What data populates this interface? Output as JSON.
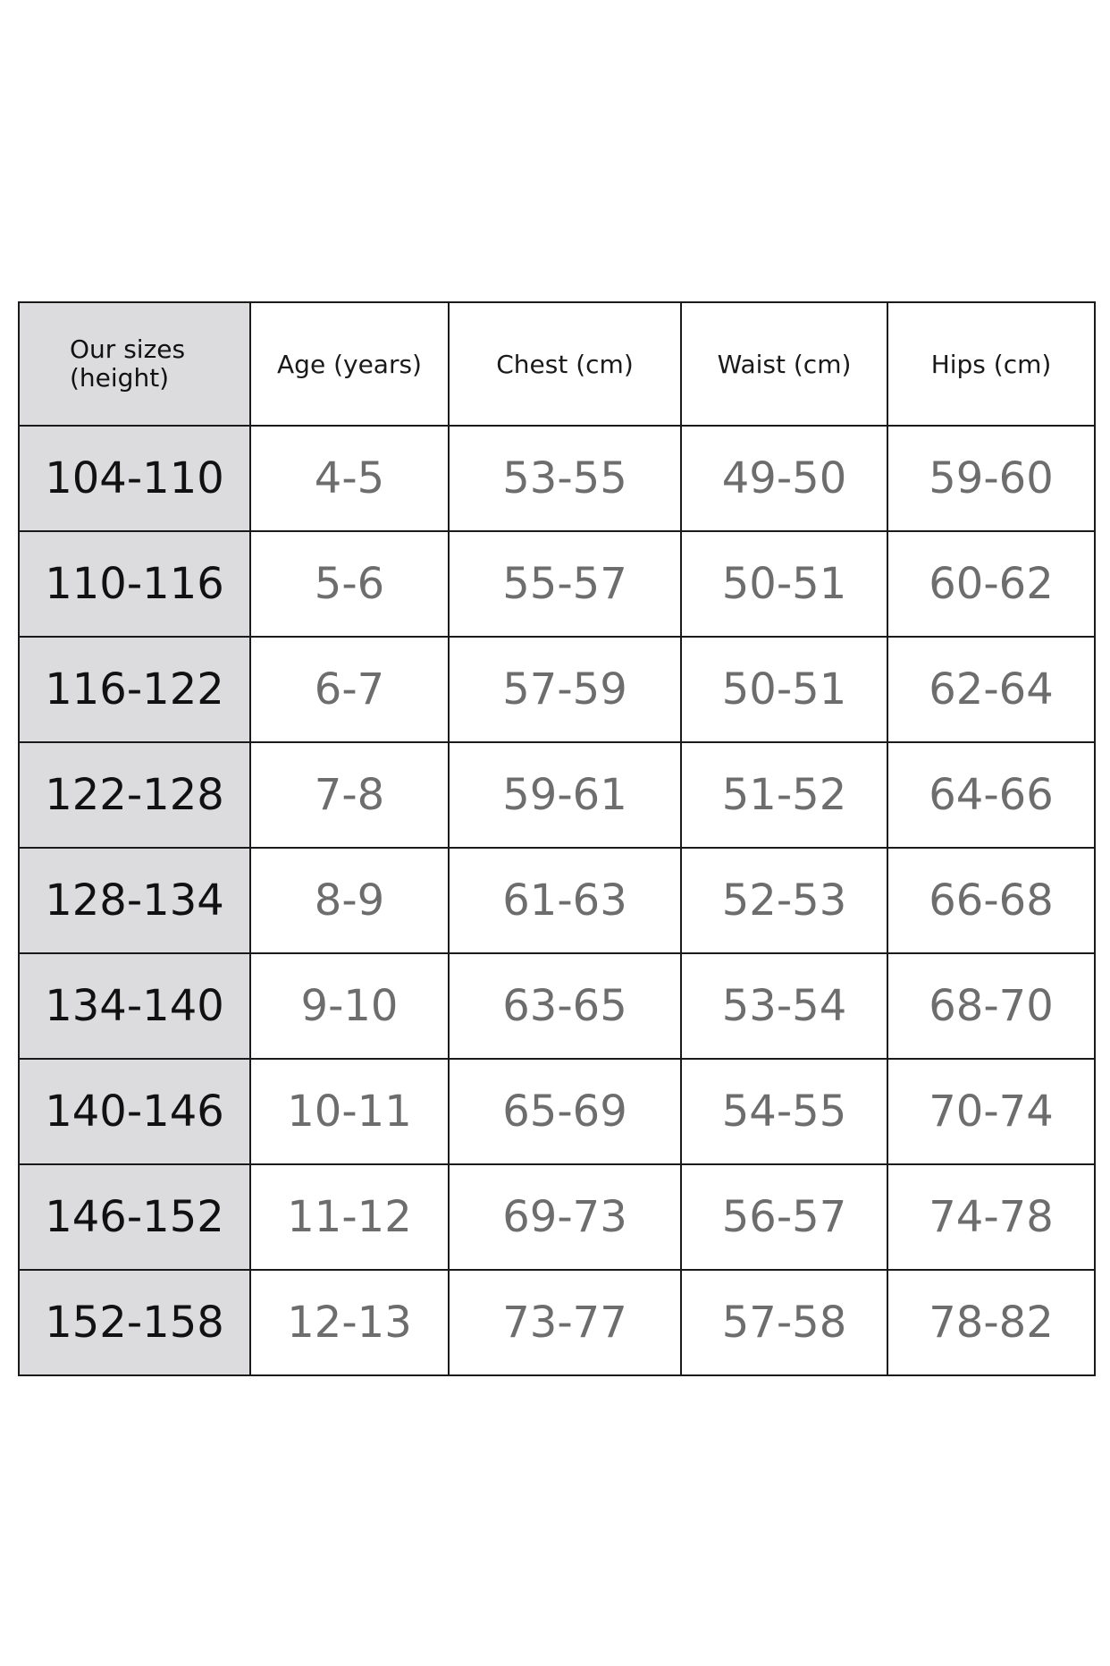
{
  "table": {
    "headers": {
      "size_line1": "Our sizes",
      "size_line2": "(height)",
      "age": "Age (years)",
      "chest": "Chest (cm)",
      "waist": "Waist (cm)",
      "hips": "Hips (cm)"
    },
    "rows": [
      {
        "size": "104-110",
        "age": "4-5",
        "chest": "53-55",
        "waist": "49-50",
        "hips": "59-60"
      },
      {
        "size": "110-116",
        "age": "5-6",
        "chest": "55-57",
        "waist": "50-51",
        "hips": "60-62"
      },
      {
        "size": "116-122",
        "age": "6-7",
        "chest": "57-59",
        "waist": "50-51",
        "hips": "62-64"
      },
      {
        "size": "122-128",
        "age": "7-8",
        "chest": "59-61",
        "waist": "51-52",
        "hips": "64-66"
      },
      {
        "size": "128-134",
        "age": "8-9",
        "chest": "61-63",
        "waist": "52-53",
        "hips": "66-68"
      },
      {
        "size": "134-140",
        "age": "9-10",
        "chest": "63-65",
        "waist": "53-54",
        "hips": "68-70"
      },
      {
        "size": "140-146",
        "age": "10-11",
        "chest": "65-69",
        "waist": "54-55",
        "hips": "70-74"
      },
      {
        "size": "146-152",
        "age": "11-12",
        "chest": "69-73",
        "waist": "56-57",
        "hips": "74-78"
      },
      {
        "size": "152-158",
        "age": "12-13",
        "chest": "73-77",
        "waist": "57-58",
        "hips": "78-82"
      }
    ]
  },
  "colors": {
    "first_column_bg": "#dcdcde",
    "value_text": "#6d6d6d",
    "size_text": "#111111",
    "border": "#1a1a1a"
  }
}
